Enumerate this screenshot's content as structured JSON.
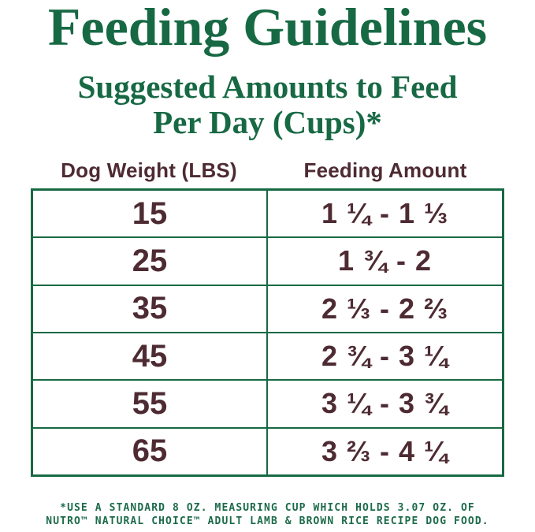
{
  "header": {
    "title": "Feeding Guidelines",
    "subtitle_line1": "Suggested Amounts to Feed",
    "subtitle_line2": "Per Day (Cups)*"
  },
  "table": {
    "columns": [
      "Dog Weight (LBS)",
      "Feeding Amount"
    ],
    "rows": [
      {
        "weight": "15",
        "amount": "1 ¼ - 1 ⅓"
      },
      {
        "weight": "25",
        "amount": "1 ¾ - 2"
      },
      {
        "weight": "35",
        "amount": "2 ⅓ - 2 ⅔"
      },
      {
        "weight": "45",
        "amount": "2 ¾ - 3 ¼"
      },
      {
        "weight": "55",
        "amount": "3 ¼ - 3 ¾"
      },
      {
        "weight": "65",
        "amount": "3 ⅔ - 4 ¼"
      }
    ]
  },
  "footnote": {
    "line1": "*USE A STANDARD 8 OZ. MEASURING CUP WHICH HOLDS 3.07 OZ. OF",
    "line2": "NUTRO™ NATURAL CHOICE™ ADULT LAMB & BROWN RICE RECIPE DOG FOOD."
  },
  "colors": {
    "green": "#176944",
    "maroon": "#4E2B33",
    "footnote_green": "#1C6B4B",
    "background": "#FFFFFF"
  }
}
